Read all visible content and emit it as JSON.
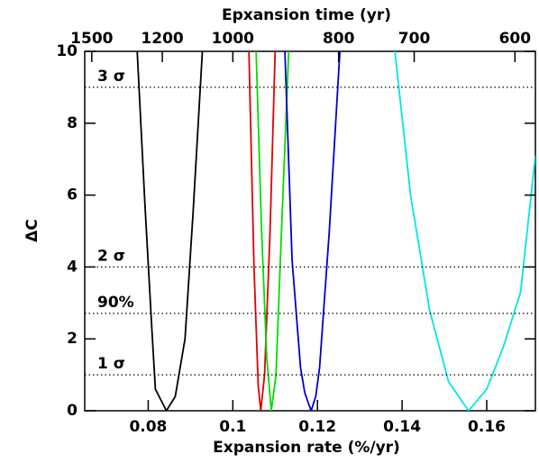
{
  "chart_data": {
    "type": "line",
    "title": "Epxansion time (yr)",
    "x_label": "Expansion rate (%/yr)",
    "y_label": "ΔC",
    "xlim": [
      0.065,
      0.1715
    ],
    "xticks": [
      0.08,
      {
        "value": 0.1,
        "label": "0.1"
      },
      0.12,
      0.14,
      0.16
    ],
    "ylim": [
      0,
      10
    ],
    "yticks": [
      0,
      2,
      4,
      6,
      8,
      10
    ],
    "x2scale": "reciprocal",
    "x2lim": [
      1538.5,
      583.1
    ],
    "x2ticks": [
      1500,
      1200,
      1000,
      800,
      700,
      600
    ],
    "hlines": [
      {
        "value": 9,
        "label": "3 σ"
      },
      {
        "value": 4,
        "label": "2 σ"
      },
      {
        "value": 2.71,
        "label": "90%"
      },
      {
        "value": 1,
        "label": "1 σ"
      }
    ],
    "series": [
      {
        "color": "#000000",
        "x": [
          0.0774,
          0.0792,
          0.0809,
          0.0817,
          0.0843,
          0.0864,
          0.0887,
          0.0906,
          0.0928
        ],
        "values": [
          10,
          5.8,
          2.2,
          0.6,
          0,
          0.4,
          2.0,
          5.5,
          10
        ]
      },
      {
        "color": "#e00000",
        "x": [
          0.1038,
          0.105,
          0.106,
          0.1066,
          0.1075,
          0.1088,
          0.11
        ],
        "values": [
          10,
          4,
          0.7,
          0,
          1,
          5,
          10
        ]
      },
      {
        "color": "#00dd00",
        "x": [
          0.1055,
          0.1068,
          0.108,
          0.1091,
          0.1102,
          0.1115,
          0.1132
        ],
        "values": [
          10,
          5,
          1.5,
          0,
          1,
          5,
          10
        ]
      },
      {
        "color": "#0000cc",
        "x": [
          0.1123,
          0.114,
          0.116,
          0.117,
          0.1185,
          0.1196,
          0.1205,
          0.1228,
          0.1253
        ],
        "values": [
          10,
          4.2,
          1.2,
          0.5,
          0,
          0.4,
          1.2,
          5,
          10
        ]
      },
      {
        "color": "#00e5e5",
        "x": [
          0.1383,
          0.142,
          0.1465,
          0.151,
          0.1557,
          0.16,
          0.164,
          0.168,
          0.1715
        ],
        "values": [
          10,
          6,
          2.8,
          0.8,
          0,
          0.6,
          1.8,
          3.3,
          7.1
        ]
      }
    ]
  }
}
